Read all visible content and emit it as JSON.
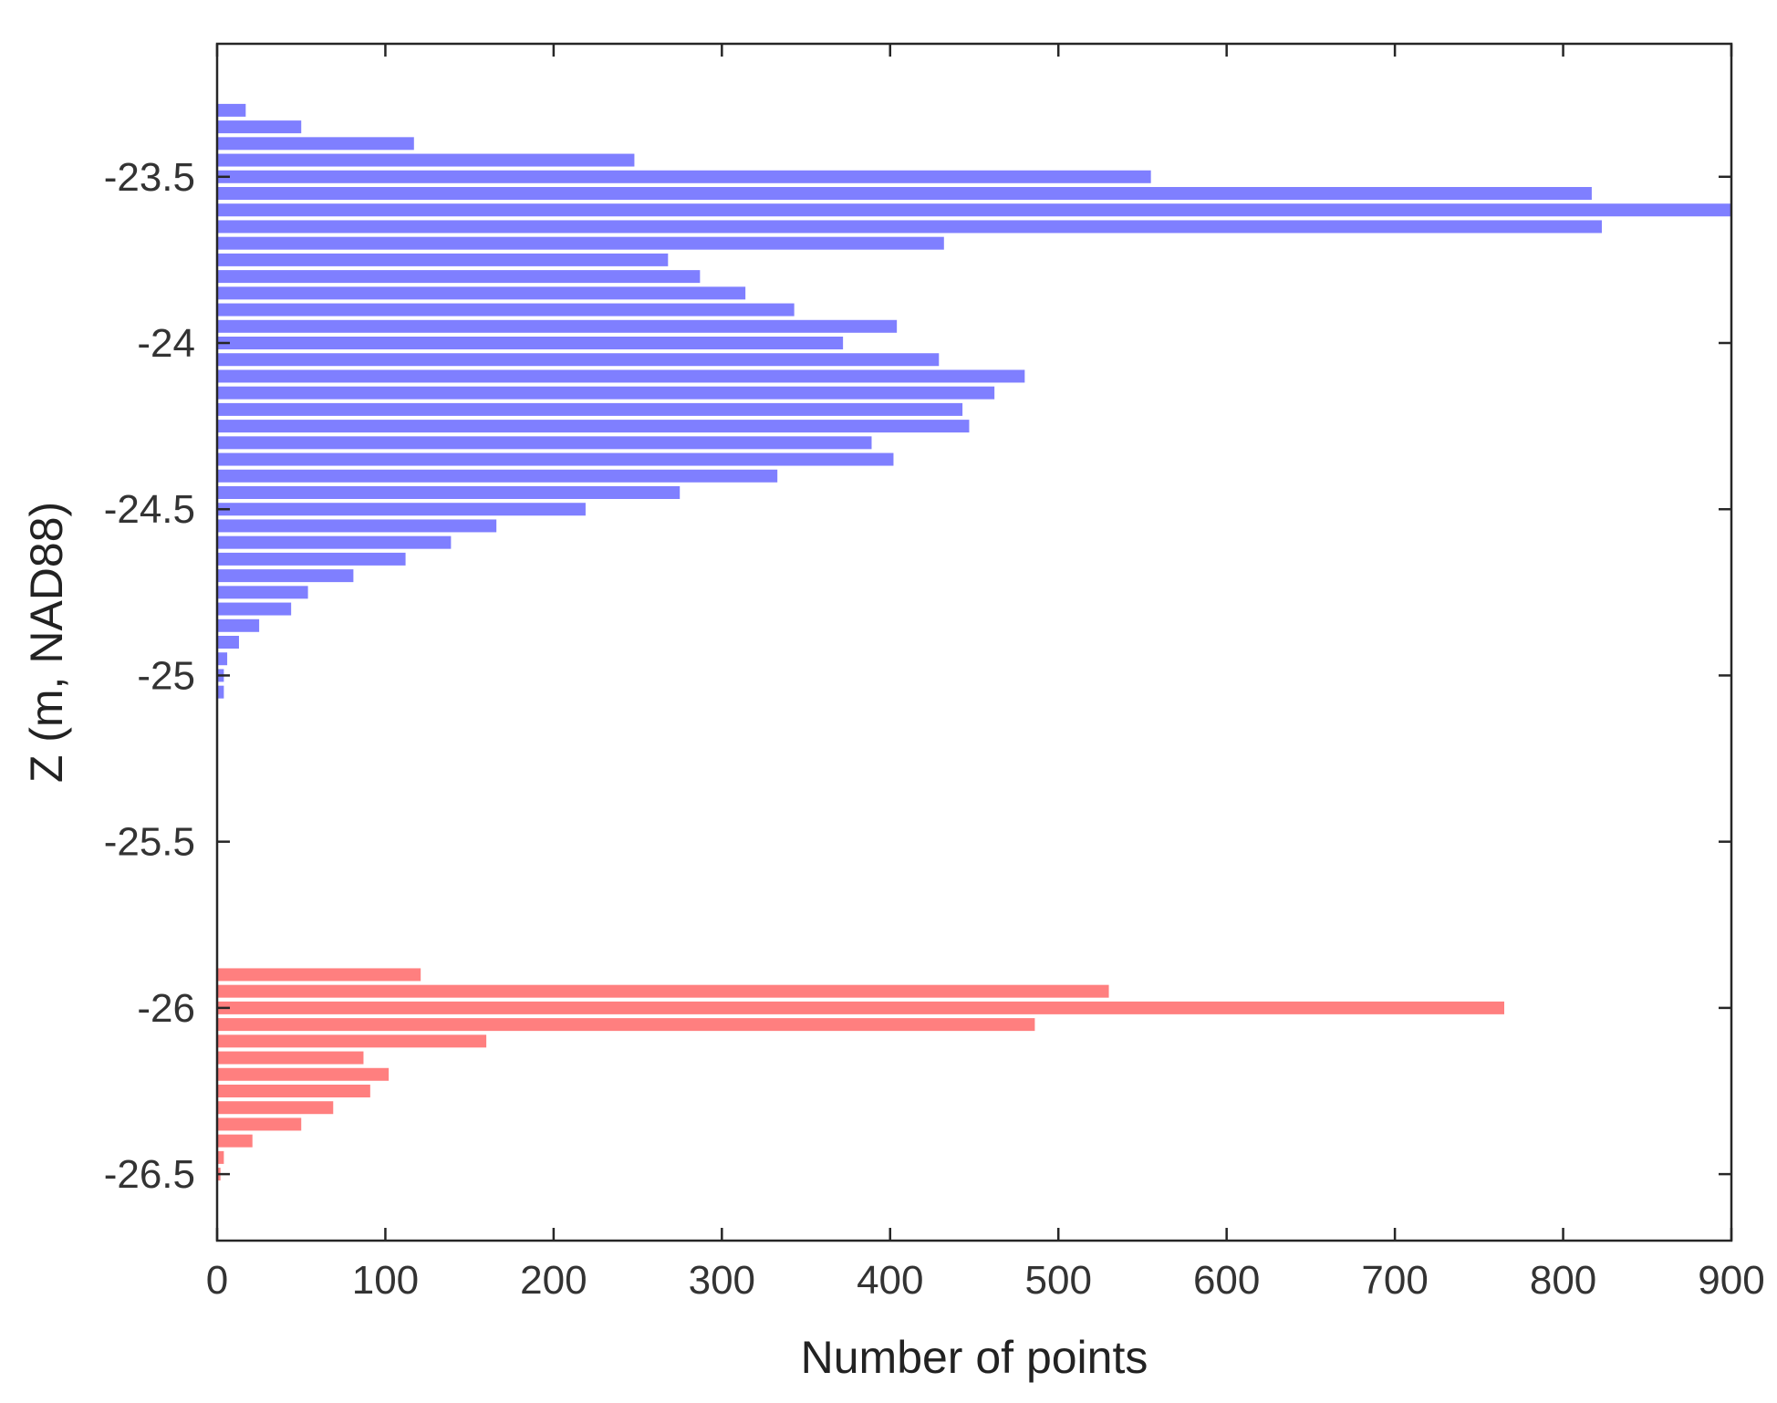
{
  "chart_data": {
    "type": "bar",
    "orientation": "horizontal",
    "xlabel": "Number of points",
    "ylabel": "Z (m, NAD88)",
    "xlim": [
      0,
      900
    ],
    "ylim": [
      -26.7,
      -23.1
    ],
    "x_ticks": [
      "0",
      "100",
      "200",
      "300",
      "400",
      "500",
      "600",
      "700",
      "800",
      "900"
    ],
    "y_ticks": [
      "-23.5",
      "-24",
      "-24.5",
      "-25",
      "-25.5",
      "-26",
      "-26.5"
    ],
    "grid": false,
    "series": [
      {
        "color": "#7f7fff",
        "bars": [
          {
            "z": -23.3,
            "count": 17
          },
          {
            "z": -23.35,
            "count": 50
          },
          {
            "z": -23.4,
            "count": 117
          },
          {
            "z": -23.45,
            "count": 248
          },
          {
            "z": -23.5,
            "count": 555
          },
          {
            "z": -23.55,
            "count": 817
          },
          {
            "z": -23.6,
            "count": 900
          },
          {
            "z": -23.65,
            "count": 823
          },
          {
            "z": -23.7,
            "count": 432
          },
          {
            "z": -23.75,
            "count": 268
          },
          {
            "z": -23.8,
            "count": 287
          },
          {
            "z": -23.85,
            "count": 314
          },
          {
            "z": -23.9,
            "count": 343
          },
          {
            "z": -23.95,
            "count": 404
          },
          {
            "z": -24.0,
            "count": 372
          },
          {
            "z": -24.05,
            "count": 429
          },
          {
            "z": -24.1,
            "count": 480
          },
          {
            "z": -24.15,
            "count": 462
          },
          {
            "z": -24.2,
            "count": 443
          },
          {
            "z": -24.25,
            "count": 447
          },
          {
            "z": -24.3,
            "count": 389
          },
          {
            "z": -24.35,
            "count": 402
          },
          {
            "z": -24.4,
            "count": 333
          },
          {
            "z": -24.45,
            "count": 275
          },
          {
            "z": -24.5,
            "count": 219
          },
          {
            "z": -24.55,
            "count": 166
          },
          {
            "z": -24.6,
            "count": 139
          },
          {
            "z": -24.65,
            "count": 112
          },
          {
            "z": -24.7,
            "count": 81
          },
          {
            "z": -24.75,
            "count": 54
          },
          {
            "z": -24.8,
            "count": 44
          },
          {
            "z": -24.85,
            "count": 25
          },
          {
            "z": -24.9,
            "count": 13
          },
          {
            "z": -24.95,
            "count": 6
          },
          {
            "z": -25.0,
            "count": 4
          },
          {
            "z": -25.05,
            "count": 4
          }
        ]
      },
      {
        "color": "#ff7f7f",
        "bars": [
          {
            "z": -25.9,
            "count": 121
          },
          {
            "z": -25.95,
            "count": 530
          },
          {
            "z": -26.0,
            "count": 765
          },
          {
            "z": -26.05,
            "count": 486
          },
          {
            "z": -26.1,
            "count": 160
          },
          {
            "z": -26.15,
            "count": 87
          },
          {
            "z": -26.2,
            "count": 102
          },
          {
            "z": -26.25,
            "count": 91
          },
          {
            "z": -26.3,
            "count": 69
          },
          {
            "z": -26.35,
            "count": 50
          },
          {
            "z": -26.4,
            "count": 21
          },
          {
            "z": -26.45,
            "count": 4
          },
          {
            "z": -26.5,
            "count": 2
          }
        ]
      }
    ]
  }
}
